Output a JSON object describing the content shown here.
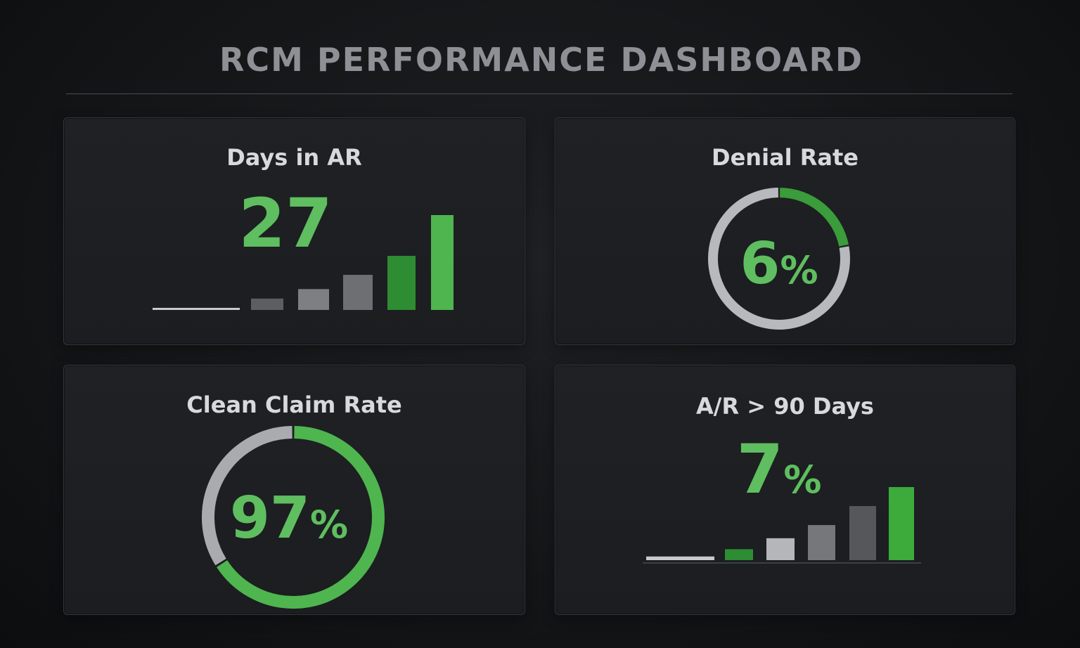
{
  "dashboard": {
    "title": "RCM PERFORMANCE DASHBOARD"
  },
  "chart_data": [
    {
      "type": "bar",
      "title": "Days in AR",
      "value": "27",
      "relative_heights": [
        0.01,
        0.12,
        0.22,
        0.37,
        0.57,
        1.0
      ],
      "bar_colors": [
        "#c9cacc",
        "#5c5e62",
        "#7d7f83",
        "#6d6f73",
        "#2e8c33",
        "#4fb54f"
      ]
    },
    {
      "type": "pie",
      "title": "Denial Rate",
      "value": "6",
      "unit": "%",
      "segments": [
        {
          "fraction": 0.22,
          "color": "#3a9c3a"
        },
        {
          "fraction": 0.78,
          "color": "#b7b9bc"
        }
      ]
    },
    {
      "type": "pie",
      "title": "Clean Claim Rate",
      "value": "97",
      "unit": "%",
      "segments": [
        {
          "fraction": 0.66,
          "color": "#4fb54f"
        },
        {
          "fraction": 0.34,
          "color": "#a9abae"
        }
      ]
    },
    {
      "type": "bar",
      "title": "A/R > 90 Days",
      "value": "7",
      "unit": "%",
      "relative_heights": [
        0.05,
        0.15,
        0.3,
        0.48,
        0.74,
        1.0
      ],
      "bar_colors": [
        "#c9cacc",
        "#2e8c33",
        "#b4b6b9",
        "#75777b",
        "#55575b",
        "#3cab3c"
      ]
    }
  ],
  "colors": {
    "accent_green": "#5fbe5f",
    "panel_border": "#34373b"
  }
}
